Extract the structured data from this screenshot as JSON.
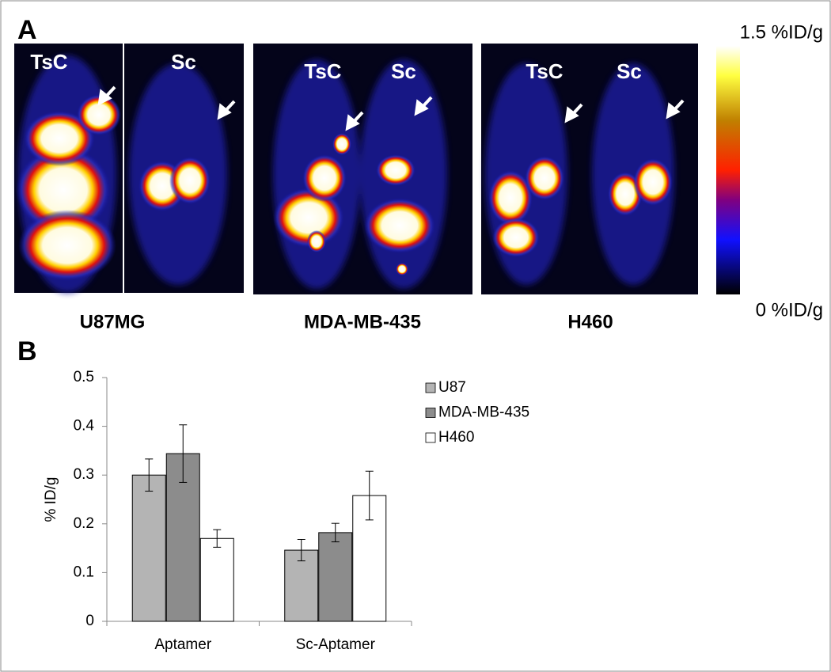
{
  "panel_a": {
    "label": "A",
    "images": [
      {
        "name": "U87MG",
        "left": "TsC",
        "right": "Sc"
      },
      {
        "name": "MDA-MB-435",
        "left": "TsC",
        "right": "Sc"
      },
      {
        "name": "H460",
        "left": "TsC",
        "right": "Sc"
      }
    ],
    "colorbar": {
      "max": "1.5 %ID/g",
      "min": "0 %ID/g"
    }
  },
  "panel_b": {
    "label": "B"
  },
  "chart_data": {
    "type": "bar",
    "y_label": "% ID/g",
    "categories": [
      "Aptamer",
      "Sc-Aptamer"
    ],
    "series": [
      {
        "name": "U87",
        "color": "#b4b4b4",
        "values": [
          0.3,
          0.146
        ],
        "errors": [
          0.033,
          0.022
        ]
      },
      {
        "name": "MDA-MB-435",
        "color": "#8c8c8c",
        "values": [
          0.344,
          0.182
        ],
        "errors": [
          0.059,
          0.019
        ]
      },
      {
        "name": "H460",
        "color": "#ffffff",
        "values": [
          0.17,
          0.258
        ],
        "errors": [
          0.018,
          0.05
        ]
      }
    ],
    "ylim": [
      0,
      0.5
    ],
    "yticks": [
      0,
      0.1,
      0.2,
      0.3,
      0.4,
      0.5
    ],
    "grid": false
  }
}
